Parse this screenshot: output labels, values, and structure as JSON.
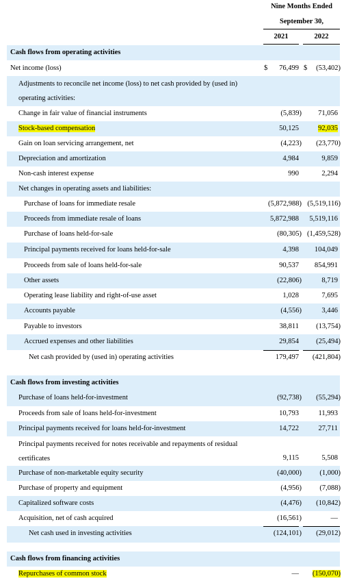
{
  "header": {
    "title": "Nine Months Ended",
    "subtitle": "September 30,",
    "years": [
      "2021",
      "2022"
    ]
  },
  "sections": [
    {
      "title": "Cash flows from operating activities",
      "rows": [
        {
          "label": "Net income (loss)",
          "currency": "$",
          "values": [
            "76,499",
            "(53,402)"
          ]
        },
        {
          "label": "Adjustments to reconcile net income (loss) to net cash provided by (used in) operating activities:"
        },
        {
          "label": "Change in fair value of financial instruments",
          "values": [
            "(5,839)",
            "71,056"
          ]
        },
        {
          "label": "Stock-based compensation",
          "values": [
            "50,125",
            "92,035"
          ],
          "highlight": true
        },
        {
          "label": "Gain on loan servicing arrangement, net",
          "values": [
            "(4,223)",
            "(23,770)"
          ]
        },
        {
          "label": "Depreciation and amortization",
          "values": [
            "4,984",
            "9,859"
          ]
        },
        {
          "label": "Non-cash interest expense",
          "values": [
            "990",
            "2,294"
          ]
        },
        {
          "label": "Net changes in operating assets and liabilities:"
        },
        {
          "label": "Purchase of loans for immediate resale",
          "values": [
            "(5,872,988)",
            "(5,519,116)"
          ]
        },
        {
          "label": "Proceeds from immediate resale of loans",
          "values": [
            "5,872,988",
            "5,519,116"
          ]
        },
        {
          "label": "Purchase of loans held-for-sale",
          "values": [
            "(80,305)",
            "(1,459,528)"
          ]
        },
        {
          "label": "Principal payments received for loans held-for-sale",
          "values": [
            "4,398",
            "104,049"
          ]
        },
        {
          "label": "Proceeds from sale of loans held-for-sale",
          "values": [
            "90,537",
            "854,991"
          ]
        },
        {
          "label": "Other assets",
          "values": [
            "(22,806)",
            "8,719"
          ]
        },
        {
          "label": "Operating lease liability and right-of-use asset",
          "values": [
            "1,028",
            "7,695"
          ]
        },
        {
          "label": "Accounts payable",
          "values": [
            "(4,556)",
            "3,446"
          ]
        },
        {
          "label": "Payable to investors",
          "values": [
            "38,811",
            "(13,754)"
          ]
        },
        {
          "label": "Accrued expenses and other liabilities",
          "values": [
            "29,854",
            "(25,494)"
          ]
        },
        {
          "label": "Net cash provided by (used in) operating activities",
          "values": [
            "179,497",
            "(421,804)"
          ]
        }
      ]
    },
    {
      "title": "Cash flows from investing activities",
      "rows": [
        {
          "label": "Purchase of loans held-for-investment",
          "values": [
            "(92,738)",
            "(55,294)"
          ]
        },
        {
          "label": "Proceeds from sale of loans held-for-investment",
          "values": [
            "10,793",
            "11,993"
          ]
        },
        {
          "label": "Principal payments received for loans held-for-investment",
          "values": [
            "14,722",
            "27,711"
          ]
        },
        {
          "label": "Principal payments received for notes receivable and repayments of residual certificates",
          "values": [
            "9,115",
            "5,508"
          ]
        },
        {
          "label": "Purchase of non-marketable equity security",
          "values": [
            "(40,000)",
            "(1,000)"
          ]
        },
        {
          "label": "Purchase of property and equipment",
          "values": [
            "(4,956)",
            "(7,088)"
          ]
        },
        {
          "label": "Capitalized software costs",
          "values": [
            "(4,476)",
            "(10,842)"
          ]
        },
        {
          "label": "Acquisition, net of cash acquired",
          "values": [
            "(16,561)",
            "—"
          ]
        },
        {
          "label": "Net cash used in investing activities",
          "values": [
            "(124,101)",
            "(29,012)"
          ]
        }
      ]
    },
    {
      "title": "Cash flows from financing activities",
      "rows": [
        {
          "label": "Repurchases of common stock",
          "values": [
            "—",
            "(150,070)"
          ],
          "highlight": true
        }
      ]
    }
  ]
}
